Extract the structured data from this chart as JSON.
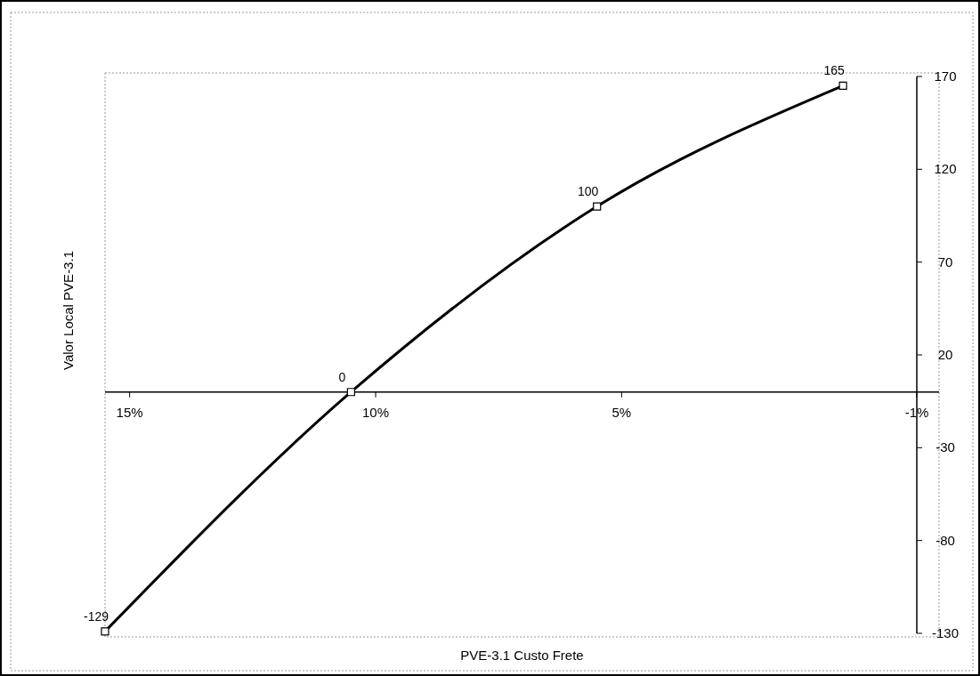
{
  "chart_data": {
    "type": "line",
    "xlabel": "PVE-3.1 Custo Frete",
    "ylabel": "Valor Local PVE-3.1",
    "x": [
      15.5,
      10.5,
      5.5,
      0.5
    ],
    "series": [
      {
        "color": "#000000",
        "values": [
          -129,
          0,
          100,
          165
        ]
      }
    ],
    "xlim": [
      15.5,
      -1
    ],
    "xticks": [
      {
        "value": 15,
        "label": "15%"
      },
      {
        "value": 10,
        "label": "10%"
      },
      {
        "value": 5,
        "label": "5%"
      },
      {
        "value": -1,
        "label": "-1%"
      }
    ],
    "ylim": [
      -130,
      170
    ],
    "yticks": [
      -130,
      -80,
      -30,
      20,
      70,
      120,
      170
    ],
    "data_labels": true,
    "marker": "square",
    "grid": false
  }
}
